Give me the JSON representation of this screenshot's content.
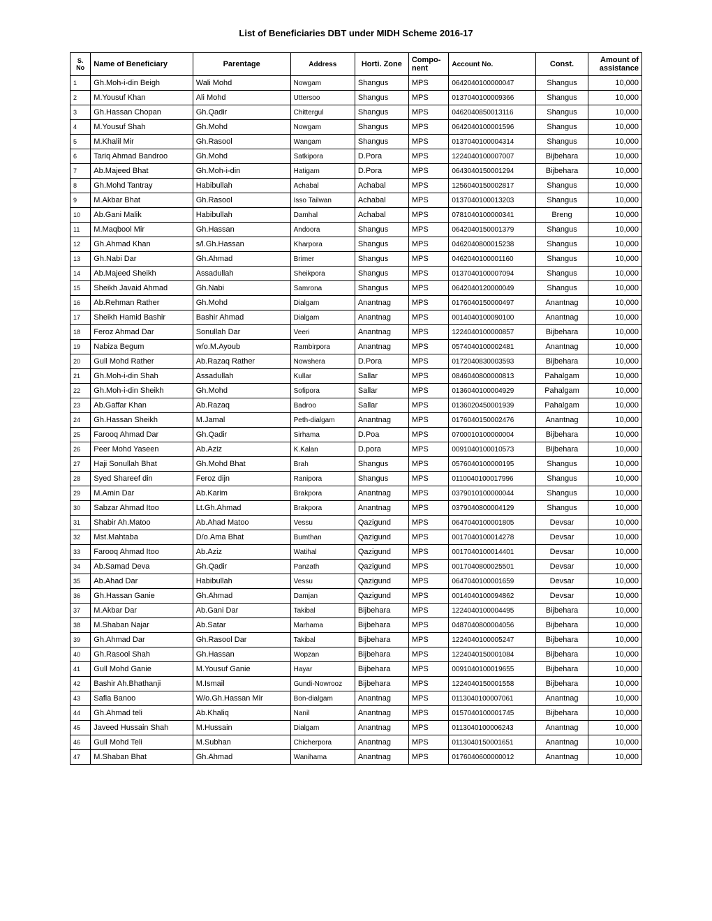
{
  "title": "List of Beneficiaries DBT under MIDH Scheme 2016-17",
  "columns": [
    "S. No",
    "Name of Beneficiary",
    "Parentage",
    "Address",
    "Horti. Zone",
    "Compo-nent",
    "Account No.",
    "Const.",
    "Amount of assistance"
  ],
  "rows": [
    {
      "sno": "1",
      "name": "Gh.Moh-i-din Beigh",
      "parent": "Wali Mohd",
      "addr": "Nowgam",
      "zone": "Shangus",
      "comp": "MPS",
      "acct": "0642040100000047",
      "const": "Shangus",
      "amt": "10,000"
    },
    {
      "sno": "2",
      "name": "M.Yousuf Khan",
      "parent": "Ali Mohd",
      "addr": "Uttersoo",
      "zone": "Shangus",
      "comp": "MPS",
      "acct": "0137040100009366",
      "const": "Shangus",
      "amt": "10,000"
    },
    {
      "sno": "3",
      "name": "Gh.Hassan Chopan",
      "parent": "Gh.Qadir",
      "addr": "Chittergul",
      "zone": "Shangus",
      "comp": "MPS",
      "acct": "0462040850013116",
      "const": "Shangus",
      "amt": "10,000"
    },
    {
      "sno": "4",
      "name": "M.Yousuf Shah",
      "parent": "Gh.Mohd",
      "addr": "Nowgam",
      "zone": "Shangus",
      "comp": "MPS",
      "acct": "0642040100001596",
      "const": "Shangus",
      "amt": "10,000"
    },
    {
      "sno": "5",
      "name": "M.Khalil Mir",
      "parent": "Gh.Rasool",
      "addr": "Wangam",
      "zone": "Shangus",
      "comp": "MPS",
      "acct": "0137040100004314",
      "const": "Shangus",
      "amt": "10,000"
    },
    {
      "sno": "6",
      "name": "Tariq Ahmad Bandroo",
      "parent": "Gh.Mohd",
      "addr": "Satkipora",
      "zone": "D.Pora",
      "comp": "MPS",
      "acct": "1224040100007007",
      "const": "Bijbehara",
      "amt": "10,000"
    },
    {
      "sno": "7",
      "name": "Ab.Majeed Bhat",
      "parent": "Gh.Moh-i-din",
      "addr": "Hatigam",
      "zone": "D.Pora",
      "comp": "MPS",
      "acct": "0643040150001294",
      "const": "Bijbehara",
      "amt": "10,000"
    },
    {
      "sno": "8",
      "name": "Gh.Mohd Tantray",
      "parent": "Habibullah",
      "addr": "Achabal",
      "zone": "Achabal",
      "comp": "MPS",
      "acct": "1256040150002817",
      "const": "Shangus",
      "amt": "10,000"
    },
    {
      "sno": "9",
      "name": "M.Akbar Bhat",
      "parent": "Gh.Rasool",
      "addr": "Isso Tailwan",
      "zone": "Achabal",
      "comp": "MPS",
      "acct": "0137040100013203",
      "const": "Shangus",
      "amt": "10,000"
    },
    {
      "sno": "10",
      "name": "Ab.Gani Malik",
      "parent": "Habibullah",
      "addr": "Damhal",
      "zone": "Achabal",
      "comp": "MPS",
      "acct": "0781040100000341",
      "const": "Breng",
      "amt": "10,000"
    },
    {
      "sno": "11",
      "name": "M.Maqbool Mir",
      "parent": "Gh.Hassan",
      "addr": "Andoora",
      "zone": "Shangus",
      "comp": "MPS",
      "acct": "0642040150001379",
      "const": "Shangus",
      "amt": "10,000"
    },
    {
      "sno": "12",
      "name": "Gh.Ahmad Khan",
      "parent": "s/l.Gh.Hassan",
      "addr": "Kharpora",
      "zone": "Shangus",
      "comp": "MPS",
      "acct": "0462040800015238",
      "const": "Shangus",
      "amt": "10,000"
    },
    {
      "sno": "13",
      "name": "Gh.Nabi Dar",
      "parent": "Gh.Ahmad",
      "addr": "Brimer",
      "zone": "Shangus",
      "comp": "MPS",
      "acct": "0462040100001160",
      "const": "Shangus",
      "amt": "10,000"
    },
    {
      "sno": "14",
      "name": "Ab.Majeed Sheikh",
      "parent": "Assadullah",
      "addr": "Sheikpora",
      "zone": "Shangus",
      "comp": "MPS",
      "acct": "0137040100007094",
      "const": "Shangus",
      "amt": "10,000"
    },
    {
      "sno": "15",
      "name": "Sheikh Javaid Ahmad",
      "parent": "Gh.Nabi",
      "addr": "Samrona",
      "zone": "Shangus",
      "comp": "MPS",
      "acct": "0642040120000049",
      "const": "Shangus",
      "amt": "10,000"
    },
    {
      "sno": "16",
      "name": "Ab.Rehman Rather",
      "parent": "Gh.Mohd",
      "addr": "Dialgam",
      "zone": "Anantnag",
      "comp": "MPS",
      "acct": "0176040150000497",
      "const": "Anantnag",
      "amt": "10,000"
    },
    {
      "sno": "17",
      "name": "Sheikh Hamid Bashir",
      "parent": "Bashir Ahmad",
      "addr": "Dialgam",
      "zone": "Anantnag",
      "comp": "MPS",
      "acct": "0014040100090100",
      "const": "Anantnag",
      "amt": "10,000"
    },
    {
      "sno": "18",
      "name": "Feroz Ahmad Dar",
      "parent": "Sonullah Dar",
      "addr": "Veeri",
      "zone": "Anantnag",
      "comp": "MPS",
      "acct": "1224040100000857",
      "const": "Bijbehara",
      "amt": "10,000"
    },
    {
      "sno": "19",
      "name": "Nabiza Begum",
      "parent": "w/o.M.Ayoub",
      "addr": "Rambirpora",
      "zone": "Anantnag",
      "comp": "MPS",
      "acct": "0574040100002481",
      "const": "Anantnag",
      "amt": "10,000"
    },
    {
      "sno": "20",
      "name": "Gull Mohd Rather",
      "parent": "Ab.Razaq Rather",
      "addr": "Nowshera",
      "zone": "D.Pora",
      "comp": "MPS",
      "acct": "0172040830003593",
      "const": "Bijbehara",
      "amt": "10,000"
    },
    {
      "sno": "21",
      "name": "Gh.Moh-i-din Shah",
      "parent": "Assadullah",
      "addr": "Kullar",
      "zone": "Sallar",
      "comp": "MPS",
      "acct": "0846040800000813",
      "const": "Pahalgam",
      "amt": "10,000"
    },
    {
      "sno": "22",
      "name": "Gh.Moh-i-din Sheikh",
      "parent": "Gh.Mohd",
      "addr": "Sofipora",
      "zone": "Sallar",
      "comp": "MPS",
      "acct": "0136040100004929",
      "const": "Pahalgam",
      "amt": "10,000"
    },
    {
      "sno": "23",
      "name": "Ab.Gaffar Khan",
      "parent": "Ab.Razaq",
      "addr": "Badroo",
      "zone": "Sallar",
      "comp": "MPS",
      "acct": "0136020450001939",
      "const": "Pahalgam",
      "amt": "10,000"
    },
    {
      "sno": "24",
      "name": "Gh.Hassan Sheikh",
      "parent": "M.Jamal",
      "addr": "Peth-dialgam",
      "zone": "Anantnag",
      "comp": "MPS",
      "acct": "0176040150002476",
      "const": "Anantnag",
      "amt": "10,000"
    },
    {
      "sno": "25",
      "name": "Farooq Ahmad Dar",
      "parent": "Gh.Qadir",
      "addr": "Sirhama",
      "zone": "D.Poa",
      "comp": "MPS",
      "acct": "0700010100000004",
      "const": "Bijbehara",
      "amt": "10,000"
    },
    {
      "sno": "26",
      "name": "Peer Mohd Yaseen",
      "parent": "Ab.Aziz",
      "addr": "K.Kalan",
      "zone": "D.pora",
      "comp": "MPS",
      "acct": "0091040100010573",
      "const": "Bijbehara",
      "amt": "10,000"
    },
    {
      "sno": "27",
      "name": "Haji Sonullah Bhat",
      "parent": "Gh.Mohd Bhat",
      "addr": "Brah",
      "zone": "Shangus",
      "comp": "MPS",
      "acct": "0576040100000195",
      "const": "Shangus",
      "amt": "10,000"
    },
    {
      "sno": "28",
      "name": "Syed Shareef din",
      "parent": "Feroz dijn",
      "addr": "Ranipora",
      "zone": "Shangus",
      "comp": "MPS",
      "acct": "0110040100017996",
      "const": "Shangus",
      "amt": "10,000"
    },
    {
      "sno": "29",
      "name": "M.Amin Dar",
      "parent": "Ab.Karim",
      "addr": "Brakpora",
      "zone": "Anantnag",
      "comp": "MPS",
      "acct": "0379010100000044",
      "const": "Shangus",
      "amt": "10,000"
    },
    {
      "sno": "30",
      "name": "Sabzar Ahmad Itoo",
      "parent": "Lt.Gh.Ahmad",
      "addr": "Brakpora",
      "zone": "Anantnag",
      "comp": "MPS",
      "acct": "0379040800004129",
      "const": "Shangus",
      "amt": "10,000"
    },
    {
      "sno": "31",
      "name": "Shabir Ah.Matoo",
      "parent": "Ab.Ahad Matoo",
      "addr": "Vessu",
      "zone": "Qazigund",
      "comp": "MPS",
      "acct": "0647040100001805",
      "const": "Devsar",
      "amt": "10,000"
    },
    {
      "sno": "32",
      "name": "Mst.Mahtaba",
      "parent": "D/o.Ama Bhat",
      "addr": "Bumthan",
      "zone": "Qazigund",
      "comp": "MPS",
      "acct": "0017040100014278",
      "const": "Devsar",
      "amt": "10,000"
    },
    {
      "sno": "33",
      "name": "Farooq Ahmad Itoo",
      "parent": "Ab.Aziz",
      "addr": "Watihal",
      "zone": "Qazigund",
      "comp": "MPS",
      "acct": "0017040100014401",
      "const": "Devsar",
      "amt": "10,000"
    },
    {
      "sno": "34",
      "name": "Ab.Samad Deva",
      "parent": "Gh.Qadir",
      "addr": "Panzath",
      "zone": "Qazigund",
      "comp": "MPS",
      "acct": "0017040800025501",
      "const": "Devsar",
      "amt": "10,000"
    },
    {
      "sno": "35",
      "name": "Ab.Ahad Dar",
      "parent": "Habibullah",
      "addr": "Vessu",
      "zone": "Qazigund",
      "comp": "MPS",
      "acct": "0647040100001659",
      "const": "Devsar",
      "amt": "10,000"
    },
    {
      "sno": "36",
      "name": "Gh.Hassan Ganie",
      "parent": "Gh.Ahmad",
      "addr": "Damjan",
      "zone": "Qazigund",
      "comp": "MPS",
      "acct": "0014040100094862",
      "const": "Devsar",
      "amt": "10,000"
    },
    {
      "sno": "37",
      "name": "M.Akbar Dar",
      "parent": "Ab.Gani Dar",
      "addr": "Takibal",
      "zone": "Bijbehara",
      "comp": "MPS",
      "acct": "1224040100004495",
      "const": "Bijbehara",
      "amt": "10,000"
    },
    {
      "sno": "38",
      "name": "M.Shaban Najar",
      "parent": "Ab.Satar",
      "addr": "Marhama",
      "zone": "Bijbehara",
      "comp": "MPS",
      "acct": "0487040800004056",
      "const": "Bijbehara",
      "amt": "10,000"
    },
    {
      "sno": "39",
      "name": "Gh.Ahmad Dar",
      "parent": "Gh.Rasool Dar",
      "addr": "Takibal",
      "zone": "Bijbehara",
      "comp": "MPS",
      "acct": "1224040100005247",
      "const": "Bijbehara",
      "amt": "10,000"
    },
    {
      "sno": "40",
      "name": "Gh.Rasool Shah",
      "parent": "Gh.Hassan",
      "addr": "Wopzan",
      "zone": "Bijbehara",
      "comp": "MPS",
      "acct": "1224040150001084",
      "const": "Bijbehara",
      "amt": "10,000"
    },
    {
      "sno": "41",
      "name": "Gull Mohd Ganie",
      "parent": "M.Yousuf Ganie",
      "addr": "Hayar",
      "zone": "Bijbehara",
      "comp": "MPS",
      "acct": "0091040100019655",
      "const": "Bijbehara",
      "amt": "10,000"
    },
    {
      "sno": "42",
      "name": "Bashir Ah.Bhathanji",
      "parent": "M.Ismail",
      "addr": "Gundi-Nowrooz",
      "zone": "Bijbehara",
      "comp": "MPS",
      "acct": "1224040150001558",
      "const": "Bijbehara",
      "amt": "10,000"
    },
    {
      "sno": "43",
      "name": "Safia Banoo",
      "parent": "W/o.Gh.Hassan Mir",
      "addr": "Bon-dialgam",
      "zone": "Anantnag",
      "comp": "MPS",
      "acct": "0113040100007061",
      "const": "Anantnag",
      "amt": "10,000"
    },
    {
      "sno": "44",
      "name": "Gh.Ahmad teli",
      "parent": "Ab.Khaliq",
      "addr": "Nanil",
      "zone": "Anantnag",
      "comp": "MPS",
      "acct": "0157040100001745",
      "const": "Bijbehara",
      "amt": "10,000"
    },
    {
      "sno": "45",
      "name": "Javeed Hussain Shah",
      "parent": "M.Hussain",
      "addr": "Dialgam",
      "zone": "Anantnag",
      "comp": "MPS",
      "acct": "0113040100006243",
      "const": "Anantnag",
      "amt": "10,000"
    },
    {
      "sno": "46",
      "name": "Gull Mohd Teli",
      "parent": "M.Subhan",
      "addr": "Chicherpora",
      "zone": "Anantnag",
      "comp": "MPS",
      "acct": "0113040150001651",
      "const": "Anantnag",
      "amt": "10,000"
    },
    {
      "sno": "47",
      "name": "M.Shaban Bhat",
      "parent": "Gh.Ahmad",
      "addr": "Wanihama",
      "zone": "Anantnag",
      "comp": "MPS",
      "acct": "0176040600000012",
      "const": "Anantnag",
      "amt": "10,000"
    }
  ]
}
